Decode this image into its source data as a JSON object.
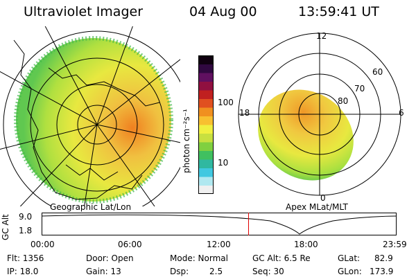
{
  "header": {
    "title": "Ultraviolet Imager",
    "date": "04 Aug 00",
    "time": "13:59:41 UT"
  },
  "left_panel": {
    "caption": "Geographic Lat/Lon"
  },
  "right_panel": {
    "caption": "Apex MLat/MLT",
    "mlt_labels": [
      "12",
      "18",
      "6",
      "0"
    ],
    "lat_labels": [
      "60",
      "70",
      "80"
    ]
  },
  "colorbar": {
    "unit_label": "photon cm⁻²s⁻¹",
    "tick_labels": [
      "100",
      "10"
    ],
    "colors": [
      "#f0f0f0",
      "#b0e8f0",
      "#40c8e0",
      "#30b8a0",
      "#40c060",
      "#80d040",
      "#c8e040",
      "#f0f040",
      "#f8c030",
      "#f09020",
      "#e05020",
      "#c02020",
      "#901040",
      "#601060",
      "#300840",
      "#100010"
    ]
  },
  "altitude_plot": {
    "ylabel": "GC Alt",
    "ytick_labels": [
      "9.0",
      "1.8"
    ],
    "xtick_labels": [
      "00:00",
      "06:00",
      "12:00",
      "18:00",
      "23:59"
    ],
    "current_time_fraction": 0.583
  },
  "status": {
    "flt": "Flt:  1356",
    "ip": "IP:  18.0",
    "door": "Door:  Open",
    "gain": "Gain:  13",
    "mode": "Mode:  Normal",
    "dsp": "Dsp:",
    "dsp_value": "2.5",
    "gc_alt": "GC Alt:  6.5 Re",
    "seq": "Seq:  30",
    "glat": "GLat:",
    "glat_value": "82.9",
    "glon": "GLon:",
    "glon_value": "173.9"
  }
}
